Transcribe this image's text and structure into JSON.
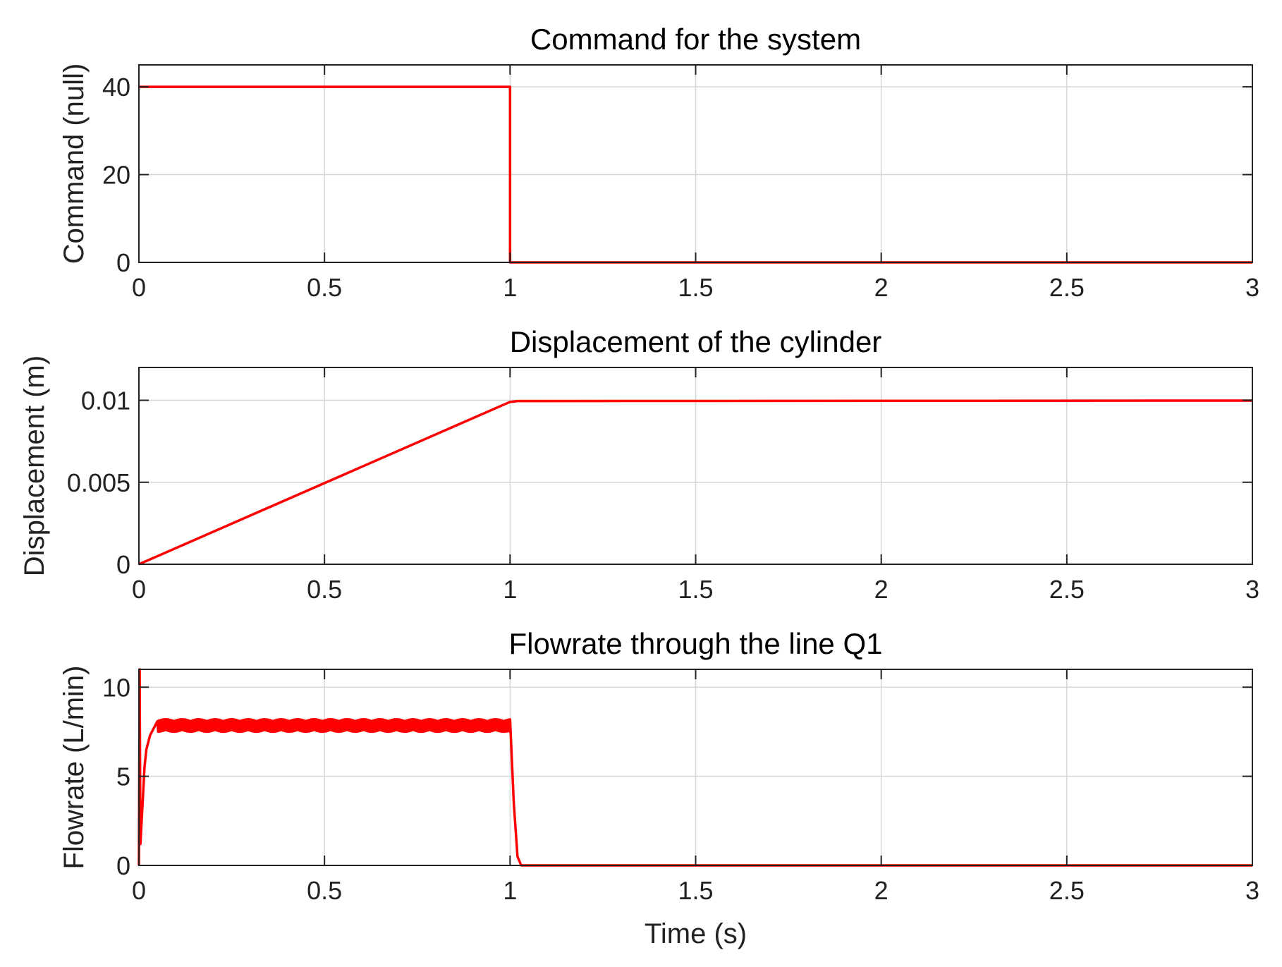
{
  "chart_data": [
    {
      "type": "line",
      "title": "Command for the system",
      "xlabel": "",
      "ylabel": "Command (null)",
      "xlim": [
        0,
        3
      ],
      "ylim": [
        0,
        45
      ],
      "xticks": [
        0,
        0.5,
        1,
        1.5,
        2,
        2.5,
        3
      ],
      "xtick_labels": [
        "0",
        "0.5",
        "1",
        "1.5",
        "2",
        "2.5",
        "3"
      ],
      "yticks": [
        0,
        20,
        40
      ],
      "ytick_labels": [
        "0",
        "20",
        "40"
      ],
      "grid": true,
      "series": [
        {
          "color": "#ff0000",
          "x": [
            0,
            1.0,
            1.0,
            3.0
          ],
          "y": [
            40,
            40,
            0,
            0
          ]
        }
      ]
    },
    {
      "type": "line",
      "title": "Displacement of the cylinder",
      "xlabel": "",
      "ylabel": "Displacement (m)",
      "xlim": [
        0,
        3
      ],
      "ylim": [
        0,
        0.012
      ],
      "xticks": [
        0,
        0.5,
        1,
        1.5,
        2,
        2.5,
        3
      ],
      "xtick_labels": [
        "0",
        "0.5",
        "1",
        "1.5",
        "2",
        "2.5",
        "3"
      ],
      "yticks": [
        0,
        0.005,
        0.01
      ],
      "ytick_labels": [
        "0",
        "0.005",
        "0.01"
      ],
      "grid": true,
      "series": [
        {
          "color": "#ff0000",
          "x": [
            0,
            1.0,
            1.02,
            3.0
          ],
          "y": [
            0,
            0.0099,
            0.00995,
            0.00998
          ]
        }
      ]
    },
    {
      "type": "line",
      "title": "Flowrate through the line Q1",
      "xlabel": "Time (s)",
      "ylabel": "Flowrate (L/min)",
      "xlim": [
        0,
        3
      ],
      "ylim": [
        0,
        11
      ],
      "xticks": [
        0,
        0.5,
        1,
        1.5,
        2,
        2.5,
        3
      ],
      "xtick_labels": [
        "0",
        "0.5",
        "1",
        "1.5",
        "2",
        "2.5",
        "3"
      ],
      "yticks": [
        0,
        5,
        10
      ],
      "ytick_labels": [
        "0",
        "5",
        "10"
      ],
      "grid": true,
      "series": [
        {
          "color": "#ff0000",
          "x": [
            0,
            0.002,
            0.004,
            0.01,
            0.015,
            0.02,
            0.03,
            0.04,
            0.06,
            0.1,
            0.2,
            0.3,
            0.4,
            0.5,
            0.6,
            0.7,
            0.8,
            0.9,
            0.99,
            1.0,
            1.01,
            1.02,
            1.03,
            1.5,
            2.0,
            2.5,
            3.0
          ],
          "y": [
            0,
            11,
            1.2,
            3.5,
            5.5,
            6.5,
            7.3,
            7.7,
            7.9,
            8.0,
            7.9,
            7.95,
            7.9,
            7.95,
            7.9,
            7.95,
            7.9,
            7.95,
            7.9,
            7.5,
            3.5,
            0.5,
            0,
            0,
            0,
            0,
            0
          ],
          "ripple": {
            "from": 0.05,
            "to": 1.0,
            "center": 7.85,
            "amplitude": 0.35
          }
        }
      ]
    }
  ]
}
